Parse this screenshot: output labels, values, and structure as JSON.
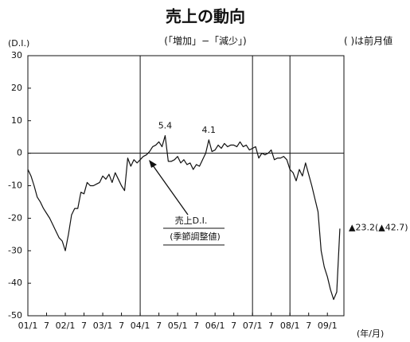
{
  "chart_data": {
    "type": "line",
    "title": "売上の動向",
    "subtitle": "(「増加」−「減少」)",
    "note": "( )は前月値",
    "y_axis_label": "(D.I.)",
    "x_axis_label": "(年/月)",
    "annotation": [
      "売上D.I.",
      "(季節調整値)"
    ],
    "end_label": "▲23.2(▲42.7)",
    "color": "#111111",
    "ylim": [
      -50,
      30
    ],
    "yticks": [
      30,
      20,
      10,
      0,
      -10,
      -20,
      -30,
      -40,
      -50
    ],
    "zero_line": true,
    "reference_lines": [
      "04/1",
      "07/1",
      "08/1"
    ],
    "categories": [
      "01/1",
      null,
      null,
      null,
      null,
      null,
      "7",
      null,
      null,
      null,
      null,
      null,
      "02/1",
      null,
      null,
      null,
      null,
      null,
      "7",
      null,
      null,
      null,
      null,
      null,
      "03/1",
      null,
      null,
      null,
      null,
      null,
      "7",
      null,
      null,
      null,
      null,
      null,
      "04/1",
      null,
      null,
      null,
      null,
      null,
      "7",
      null,
      null,
      null,
      null,
      null,
      "05/1",
      null,
      null,
      null,
      null,
      null,
      "7",
      null,
      null,
      null,
      null,
      null,
      "06/1",
      null,
      null,
      null,
      null,
      null,
      "7",
      null,
      null,
      null,
      null,
      null,
      "07/1",
      null,
      null,
      null,
      null,
      null,
      "7",
      null,
      null,
      null,
      null,
      null,
      "08/1",
      null,
      null,
      null,
      null,
      null,
      "7",
      null,
      null,
      null,
      null,
      null,
      "09/1",
      null,
      null,
      null,
      null
    ],
    "values": [
      -5,
      -7,
      -10,
      -13.5,
      -15,
      -17,
      -18.5,
      -20,
      -22,
      -24,
      -26,
      -27,
      -30,
      -25,
      -19,
      -17,
      -17,
      -12,
      -12.5,
      -9,
      -10,
      -10,
      -9.5,
      -9,
      -7,
      -8,
      -6.5,
      -9,
      -6,
      -8,
      -10,
      -11.5,
      -1.5,
      -4,
      -2,
      -3,
      -2,
      -1,
      -0.5,
      0.5,
      2,
      2.5,
      3.5,
      2,
      5.4,
      -2.5,
      -2.5,
      -2,
      -1,
      -3,
      -2,
      -3.5,
      -3,
      -5,
      -3.5,
      -4,
      -2,
      0,
      4.1,
      0.5,
      1,
      2.5,
      1.5,
      3,
      2,
      2.5,
      2.5,
      2,
      3.5,
      2,
      2.5,
      1,
      1.5,
      2,
      -1.5,
      0,
      -0.5,
      0,
      1,
      -2,
      -1.5,
      -1.5,
      -1,
      -2,
      -5,
      -6,
      -8.5,
      -5,
      -7,
      -3,
      -6.5,
      -10,
      -14,
      -18,
      -30,
      -35,
      -38,
      -42,
      -45,
      -42.7,
      -23.2
    ],
    "value_labels": [
      null,
      null,
      null,
      null,
      null,
      null,
      null,
      null,
      null,
      null,
      null,
      null,
      null,
      null,
      null,
      null,
      null,
      null,
      null,
      null,
      null,
      null,
      null,
      null,
      null,
      null,
      null,
      null,
      null,
      null,
      null,
      null,
      null,
      null,
      null,
      null,
      null,
      null,
      null,
      null,
      null,
      null,
      null,
      null,
      "5.4",
      null,
      null,
      null,
      null,
      null,
      null,
      null,
      null,
      null,
      null,
      null,
      null,
      null,
      "4.1",
      null,
      null,
      null,
      null,
      null,
      null,
      null,
      null,
      null,
      null,
      null,
      null,
      null,
      null,
      null,
      null,
      null,
      null,
      null,
      null,
      null,
      null,
      null,
      null,
      null,
      null,
      null,
      null,
      null,
      null,
      null,
      null,
      null,
      null,
      null,
      null,
      null,
      null,
      null,
      null,
      null,
      null
    ]
  }
}
